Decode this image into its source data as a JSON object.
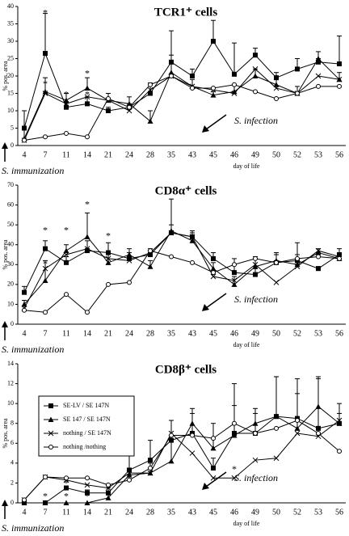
{
  "chart_data": [
    {
      "type": "line",
      "title": "TCR1⁺ cells",
      "xlabel": "day of life",
      "ylabel": "% pos. area",
      "categories": [
        4,
        7,
        11,
        14,
        21,
        24,
        28,
        35,
        43,
        45,
        46,
        49,
        50,
        52,
        53,
        56
      ],
      "ylim": [
        0,
        40
      ],
      "yticks": [
        0,
        5,
        10,
        15,
        20,
        25,
        30,
        35,
        40
      ],
      "legend": false,
      "annotations": [
        "S. infection",
        "S. immunization"
      ],
      "asterisks": [
        {
          "text": "*",
          "x": 7,
          "y": 38
        },
        {
          "text": "*",
          "x": 7,
          "y": 17.5
        },
        {
          "text": "*",
          "x": 11,
          "y": 14.5
        },
        {
          "text": "*",
          "x": 11,
          "y": 11.8
        },
        {
          "text": "*",
          "x": 14,
          "y": 20.5
        },
        {
          "text": "*",
          "x": 14,
          "y": 14.5
        }
      ],
      "series": [
        {
          "name": "SE-LV / SE 147N",
          "color": "#000",
          "marker": "square",
          "values": [
            5,
            26.5,
            11,
            12,
            10,
            11,
            15,
            24,
            20,
            30,
            20.5,
            26,
            19.5,
            22,
            24,
            23.5
          ],
          "errors": [
            5,
            11.5,
            1.5,
            2,
            1,
            1,
            3,
            9,
            2,
            6,
            9,
            2,
            1.5,
            3,
            1,
            8
          ]
        },
        {
          "name": "SE 147 / SE 147N",
          "color": "#000",
          "marker": "triangle",
          "values": [
            2,
            15.5,
            13,
            16.5,
            13,
            12,
            7,
            21,
            17,
            14.5,
            15.5,
            20,
            17.5,
            15,
            25,
            19
          ],
          "errors": [
            3,
            4,
            2,
            3,
            2,
            2,
            3,
            5,
            2,
            1,
            2,
            2,
            2,
            2,
            2,
            2
          ]
        },
        {
          "name": "nothing / SE 147N",
          "color": "#000",
          "marker": "x",
          "values": [
            1.5,
            15,
            12,
            14,
            13,
            10,
            16,
            20,
            17,
            16,
            15,
            22,
            16.5,
            15,
            20,
            19
          ]
        },
        {
          "name": "nothing /nothing",
          "color": "#000",
          "marker": "circle",
          "values": [
            1.5,
            2.5,
            3.5,
            2.5,
            13.5,
            11,
            17.5,
            20,
            16.5,
            16.5,
            17.5,
            15.5,
            13.5,
            15,
            17,
            17
          ]
        }
      ]
    },
    {
      "type": "line",
      "title": "CD8α⁺ cells",
      "xlabel": "day of life",
      "ylabel": "% pos. area",
      "categories": [
        4,
        7,
        11,
        14,
        21,
        24,
        28,
        35,
        43,
        45,
        46,
        49,
        50,
        52,
        53,
        56
      ],
      "ylim": [
        0,
        70
      ],
      "yticks": [
        0,
        10,
        20,
        30,
        40,
        50,
        60,
        70
      ],
      "legend": false,
      "annotations": [
        "S. infection",
        "S. immunization"
      ],
      "asterisks": [
        {
          "text": "*",
          "x": 7,
          "y": 47
        },
        {
          "text": "*",
          "x": 7,
          "y": 30
        },
        {
          "text": "*",
          "x": 11,
          "y": 47
        },
        {
          "text": "*",
          "x": 14,
          "y": 60
        },
        {
          "text": "*",
          "x": 21,
          "y": 44
        }
      ],
      "series": [
        {
          "name": "SE-LV / SE 147N",
          "color": "#000",
          "marker": "square",
          "values": [
            16,
            38,
            31,
            37,
            36,
            33,
            35,
            46,
            44,
            33,
            26,
            25,
            31,
            32,
            28,
            35
          ],
          "errors": [
            3,
            4,
            3,
            5,
            5,
            3,
            3,
            17,
            3,
            3,
            7,
            3,
            4,
            9,
            1,
            3
          ]
        },
        {
          "name": "SE 147 / SE 147N",
          "color": "#000",
          "marker": "triangle",
          "values": [
            10,
            22,
            37,
            44,
            31,
            35,
            29,
            47,
            42,
            28,
            20,
            29,
            32,
            30,
            36,
            33
          ],
          "errors": [
            2,
            10,
            3,
            12,
            4,
            3,
            3,
            3,
            4,
            3,
            4,
            5,
            4,
            5,
            2,
            2
          ]
        },
        {
          "name": "nothing / SE 147N",
          "color": "#000",
          "marker": "x",
          "values": [
            8,
            28,
            35,
            38,
            33,
            32,
            36,
            46,
            44,
            24,
            22,
            30,
            21,
            29,
            37,
            34
          ]
        },
        {
          "name": "nothing /nothing",
          "color": "#000",
          "marker": "circle",
          "values": [
            7,
            6,
            15,
            6,
            20,
            21,
            37,
            34,
            31,
            26,
            30,
            33,
            31,
            33,
            34,
            33
          ]
        }
      ]
    },
    {
      "type": "line",
      "title": "CD8β⁺ cells",
      "xlabel": "day of life",
      "ylabel": "% pos. area",
      "categories": [
        4,
        7,
        11,
        14,
        21,
        24,
        28,
        35,
        43,
        45,
        46,
        49,
        50,
        52,
        53,
        56
      ],
      "ylim": [
        0,
        14
      ],
      "yticks": [
        0,
        2,
        4,
        6,
        8,
        10,
        12,
        14
      ],
      "legend": "upper left",
      "annotations": [
        "S. infection",
        "S. immunization"
      ],
      "asterisks": [
        {
          "text": "*",
          "x": 7,
          "y": 0.6
        },
        {
          "text": "*",
          "x": 11,
          "y": 0.6
        },
        {
          "text": "*",
          "x": 11,
          "y": 1.9
        },
        {
          "text": "*",
          "x": 14,
          "y": 0.6
        },
        {
          "text": "*",
          "x": 46,
          "y": 3.3
        }
      ],
      "series": [
        {
          "name": "SE-LV / SE 147N",
          "color": "#000",
          "marker": "square",
          "values": [
            0,
            0,
            1.5,
            1,
            1,
            3.3,
            4.3,
            6.3,
            7,
            3.5,
            7,
            7,
            8.7,
            8.5,
            7.5,
            8
          ],
          "errors": [
            0,
            0,
            0.2,
            0.3,
            0.5,
            2,
            2,
            2,
            2,
            1,
            5,
            2,
            4,
            4,
            5,
            2
          ]
        },
        {
          "name": "SE 147 / SE 147N",
          "color": "#000",
          "marker": "triangle",
          "values": [
            0,
            0,
            0,
            0,
            0.5,
            2.8,
            3,
            4.2,
            8,
            5.5,
            6.8,
            8,
            8.7,
            7.5,
            9.7,
            8
          ],
          "errors": [
            0,
            0,
            0,
            0,
            0.3,
            2,
            1,
            2,
            1.5,
            2.5,
            3,
            1.5,
            4,
            3.5,
            3,
            1
          ]
        },
        {
          "name": "nothing / SE 147N",
          "color": "#000",
          "marker": "x",
          "values": [
            0.3,
            2.6,
            2.3,
            1.8,
            1.5,
            3,
            3,
            7,
            5,
            2.5,
            2.5,
            4.3,
            4.5,
            7,
            6.7,
            8.3
          ]
        },
        {
          "name": "nothing /nothing",
          "color": "#000",
          "marker": "circle",
          "values": [
            0.3,
            2.6,
            2.5,
            2.5,
            1.8,
            2.3,
            3.5,
            6.8,
            6.8,
            6.5,
            8,
            7,
            7.5,
            8.3,
            7,
            5.2
          ]
        }
      ]
    }
  ]
}
